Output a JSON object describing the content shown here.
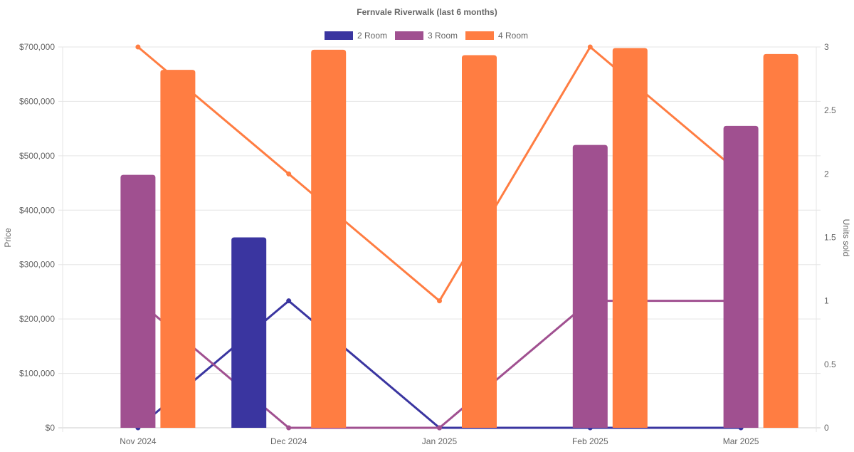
{
  "chart_data": {
    "type": "bar+line",
    "title": "Fernvale Riverwalk (last 6 months)",
    "categories": [
      "Nov 2024",
      "Dec 2024",
      "Jan 2025",
      "Feb 2025",
      "Mar 2025"
    ],
    "ylabel": "Price",
    "y2label": "Units sold",
    "ylim": [
      0,
      700000
    ],
    "y2lim": [
      0,
      3
    ],
    "yticks": [
      "$0",
      "$100,000",
      "$200,000",
      "$300,000",
      "$400,000",
      "$500,000",
      "$600,000",
      "$700,000"
    ],
    "y2ticks": [
      "0",
      "0.5",
      "1",
      "1.5",
      "2",
      "2.5",
      "3"
    ],
    "grid": true,
    "legend_position": "top",
    "series": [
      {
        "name": "2 Room",
        "color": "#3a35a0",
        "prices": [
          null,
          350000,
          null,
          null,
          null
        ],
        "units": [
          0,
          1,
          0,
          0,
          0
        ]
      },
      {
        "name": "3 Room",
        "color": "#a05090",
        "prices": [
          465000,
          null,
          null,
          520000,
          555000
        ],
        "units": [
          1,
          0,
          0,
          1,
          1
        ]
      },
      {
        "name": "4 Room",
        "color": "#ff7d42",
        "prices": [
          658000,
          695000,
          685000,
          698000,
          687000
        ],
        "units": [
          3,
          2,
          1,
          3,
          2
        ]
      }
    ]
  }
}
